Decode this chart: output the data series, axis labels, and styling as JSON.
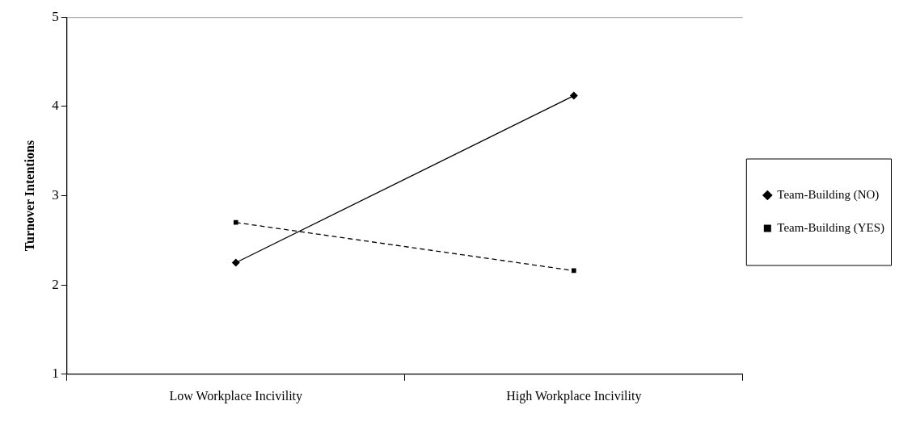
{
  "chart_data": {
    "type": "line",
    "ylabel": "Turnover Intentions",
    "categories": [
      "Low Workplace Incivility",
      "High Workplace Incivility"
    ],
    "ylim": [
      1,
      5
    ],
    "yticks": [
      1,
      2,
      3,
      4,
      5
    ],
    "grid": false,
    "legend": "right",
    "series": [
      {
        "name": "Team-Building (NO)",
        "color": "#000000",
        "values": [
          2.25,
          4.12
        ],
        "marker": "diamond",
        "line_style": "solid"
      },
      {
        "name": "Team-Building (YES)",
        "color": "#000000",
        "values": [
          2.7,
          2.16
        ],
        "marker": "square",
        "line_style": "dashed"
      }
    ]
  }
}
